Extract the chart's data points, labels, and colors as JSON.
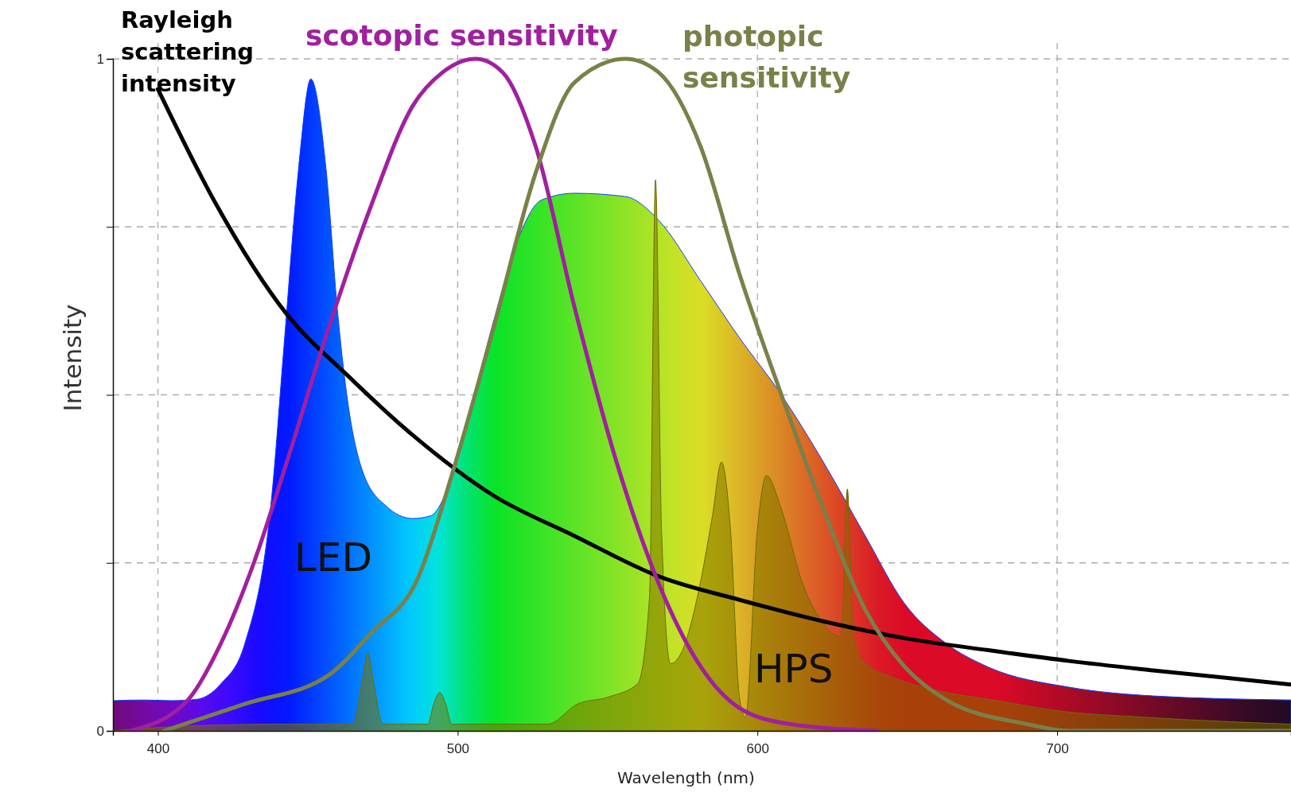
{
  "chart_data": {
    "type": "area",
    "xlabel": "Wavelength (nm)",
    "ylabel": "Intensity",
    "xlim": [
      385,
      778
    ],
    "ylim": [
      0,
      1
    ],
    "xticks": [
      400,
      500,
      600,
      700
    ],
    "yticks": [
      0,
      {
        "value": 0.25,
        "label": null
      },
      {
        "value": 0.5,
        "label": null
      },
      {
        "value": 0.75,
        "label": null
      },
      1
    ],
    "grid": true,
    "line_style": "solid",
    "series": [
      {
        "name": "LED",
        "color": "#1040ff",
        "x": [
          385,
          395,
          405,
          413,
          421,
          429,
          438,
          442,
          447,
          451,
          456,
          460,
          463,
          468,
          476,
          485,
          491,
          497,
          504,
          512,
          520,
          528,
          539,
          556,
          567,
          581,
          594,
          608,
          622,
          636,
          649,
          663,
          677,
          704,
          732,
          778
        ],
        "values": [
          0.045,
          0.046,
          0.045,
          0.047,
          0.07,
          0.13,
          0.35,
          0.57,
          0.84,
          0.97,
          0.84,
          0.62,
          0.5,
          0.39,
          0.335,
          0.316,
          0.32,
          0.365,
          0.475,
          0.61,
          0.73,
          0.79,
          0.8,
          0.795,
          0.76,
          0.67,
          0.585,
          0.5,
          0.4,
          0.29,
          0.19,
          0.13,
          0.095,
          0.065,
          0.052,
          0.046
        ]
      },
      {
        "name": "HPS",
        "color": "#6e6a10",
        "x": [
          385,
          400,
          440,
          465,
          468,
          470,
          472,
          475,
          490,
          492,
          494,
          496,
          498,
          530,
          540,
          550,
          560,
          564,
          566,
          568,
          571,
          575,
          580,
          585,
          588,
          591,
          594,
          596,
          600,
          603,
          608,
          615,
          622,
          628,
          630,
          632,
          636,
          645,
          660,
          680,
          700,
          730,
          778
        ],
        "values": [
          0.0,
          0.005,
          0.01,
          0.01,
          0.07,
          0.116,
          0.07,
          0.01,
          0.01,
          0.04,
          0.057,
          0.04,
          0.01,
          0.01,
          0.04,
          0.05,
          0.07,
          0.2,
          0.82,
          0.3,
          0.1,
          0.12,
          0.2,
          0.32,
          0.4,
          0.3,
          0.05,
          0.02,
          0.3,
          0.38,
          0.33,
          0.22,
          0.16,
          0.14,
          0.36,
          0.14,
          0.1,
          0.08,
          0.06,
          0.045,
          0.03,
          0.02,
          0.01
        ]
      },
      {
        "name": "Rayleigh scattering intensity",
        "type": "line",
        "color": "#000000",
        "x": [
          400,
          419,
          443,
          463,
          485,
          512,
          539,
          567,
          594,
          622,
          649,
          677,
          704,
          732,
          778
        ],
        "values": [
          0.955,
          0.787,
          0.62,
          0.53,
          0.44,
          0.35,
          0.29,
          0.23,
          0.195,
          0.163,
          0.138,
          0.12,
          0.104,
          0.09,
          0.069
        ]
      },
      {
        "name": "scotopic sensitivity",
        "type": "line",
        "color": "#a020a0",
        "x": [
          391,
          410,
          421,
          432,
          443,
          457,
          471,
          485,
          495,
          506,
          515,
          526,
          539,
          553,
          567,
          581,
          594,
          611,
          640
        ],
        "values": [
          0,
          0.046,
          0.13,
          0.25,
          0.4,
          0.6,
          0.78,
          0.93,
          0.98,
          1,
          0.98,
          0.87,
          0.63,
          0.4,
          0.22,
          0.096,
          0.034,
          0.01,
          0
        ]
      },
      {
        "name": "photopic sensitivity",
        "type": "line",
        "color": "#7a8048",
        "x": [
          402,
          429,
          457,
          471,
          487,
          498,
          512,
          526,
          539,
          556,
          567,
          581,
          594,
          608,
          622,
          636,
          649,
          663,
          690,
          704,
          778
        ],
        "values": [
          0,
          0.04,
          0.083,
          0.145,
          0.23,
          0.38,
          0.6,
          0.83,
          0.965,
          1,
          0.98,
          0.87,
          0.68,
          0.5,
          0.33,
          0.18,
          0.096,
          0.046,
          0.01,
          0,
          0
        ]
      }
    ]
  }
}
